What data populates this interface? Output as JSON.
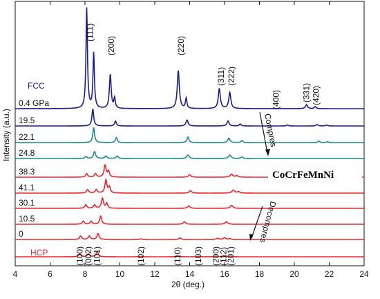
{
  "chart_data": {
    "type": "line",
    "xlabel": "2θ (deg.)",
    "ylabel": "Intensity (a.u.)",
    "xlim": [
      4,
      24
    ],
    "x_ticks": [
      "4",
      "6",
      "8",
      "10",
      "12",
      "14",
      "16",
      "18",
      "20",
      "22",
      "24"
    ],
    "grid": false,
    "phase_labels": {
      "fcc": "FCC",
      "hcp": "HCP"
    },
    "alloy_label": "CoCrFeMnNi",
    "arrow_labels": {
      "compress": "Compres",
      "decompress": "Decompres"
    },
    "colors": {
      "fcc": "#1b1b8f",
      "transition": "#1b8a8a",
      "hcp": "#e8262b"
    },
    "fcc_peaks": [
      {
        "label": "(111)",
        "x": 8.3
      },
      {
        "label": "(200)",
        "x": 9.5
      },
      {
        "label": "(220)",
        "x": 13.5
      },
      {
        "label": "(311)",
        "x": 15.8
      },
      {
        "label": "(222)",
        "x": 16.4
      },
      {
        "label": "(400)",
        "x": 18.95
      },
      {
        "label": "(331)",
        "x": 20.7
      },
      {
        "label": "(420)",
        "x": 21.25
      }
    ],
    "hcp_peaks": [
      {
        "label": "(100)",
        "x": 7.7
      },
      {
        "label": "(002)",
        "x": 8.2
      },
      {
        "label": "(101)",
        "x": 8.7
      },
      {
        "label": "(102)",
        "x": 11.2
      },
      {
        "label": "(110)",
        "x": 13.3
      },
      {
        "label": "(103)",
        "x": 14.5
      },
      {
        "label": "(200)",
        "x": 15.5
      },
      {
        "label": "(112)",
        "x": 15.95
      },
      {
        "label": "(201)",
        "x": 16.35
      }
    ],
    "series": [
      {
        "name": "0.4 GPa",
        "color": "#1b1b8f",
        "peaks": [
          [
            8.1,
            100,
            0.05
          ],
          [
            8.5,
            55,
            0.05
          ],
          [
            9.45,
            34,
            0.06
          ],
          [
            9.7,
            10,
            0.05
          ],
          [
            13.35,
            38,
            0.07
          ],
          [
            13.8,
            10,
            0.05
          ],
          [
            15.7,
            20,
            0.07
          ],
          [
            16.3,
            16,
            0.07
          ],
          [
            20.7,
            4,
            0.07
          ],
          [
            21.2,
            2,
            0.06
          ]
        ]
      },
      {
        "name": "19.5",
        "color": "#1b1b8f",
        "peaks": [
          [
            8.45,
            17,
            0.06
          ],
          [
            9.75,
            5,
            0.06
          ],
          [
            13.85,
            6,
            0.07
          ],
          [
            16.2,
            5,
            0.07
          ],
          [
            16.9,
            2,
            0.06
          ],
          [
            19.6,
            1,
            0.06
          ],
          [
            21.3,
            1.5,
            0.06
          ],
          [
            21.85,
            1,
            0.06
          ]
        ]
      },
      {
        "name": "22.1",
        "color": "#1b8a8a",
        "peaks": [
          [
            8.5,
            15,
            0.06
          ],
          [
            9.8,
            5,
            0.06
          ],
          [
            13.9,
            5.5,
            0.07
          ],
          [
            16.25,
            4.5,
            0.07
          ],
          [
            17.0,
            2,
            0.06
          ],
          [
            21.4,
            1.5,
            0.06
          ],
          [
            21.9,
            1,
            0.06
          ]
        ]
      },
      {
        "name": "24.8",
        "color": "#1b8a8a",
        "peaks": [
          [
            8.05,
            2,
            0.06
          ],
          [
            8.55,
            7,
            0.07
          ],
          [
            9.2,
            2.5,
            0.07
          ],
          [
            9.85,
            2.5,
            0.07
          ],
          [
            13.9,
            3.5,
            0.08
          ],
          [
            16.3,
            3.5,
            0.08
          ],
          [
            17.0,
            1.5,
            0.07
          ]
        ]
      },
      {
        "name": "38.3",
        "color": "#e8262b",
        "peaks": [
          [
            8.1,
            3.5,
            0.07
          ],
          [
            8.6,
            3.5,
            0.07
          ],
          [
            9.15,
            12,
            0.07
          ],
          [
            9.35,
            6,
            0.06
          ],
          [
            14.0,
            2.5,
            0.08
          ],
          [
            16.4,
            3,
            0.09
          ],
          [
            16.7,
            1.5,
            0.08
          ]
        ]
      },
      {
        "name": "41.1",
        "color": "#e8262b",
        "peaks": [
          [
            8.15,
            3.5,
            0.07
          ],
          [
            8.65,
            3.5,
            0.07
          ],
          [
            9.2,
            13,
            0.07
          ],
          [
            9.4,
            6,
            0.06
          ],
          [
            14.05,
            2.5,
            0.08
          ],
          [
            16.5,
            3,
            0.09
          ],
          [
            16.8,
            1.5,
            0.08
          ]
        ]
      },
      {
        "name": "30.1",
        "color": "#e8262b",
        "peaks": [
          [
            8.05,
            3.5,
            0.07
          ],
          [
            8.55,
            3.5,
            0.07
          ],
          [
            9.0,
            10,
            0.07
          ],
          [
            9.25,
            5,
            0.06
          ],
          [
            13.95,
            2.5,
            0.08
          ],
          [
            16.4,
            3,
            0.09
          ]
        ]
      },
      {
        "name": "10.5",
        "color": "#e8262b",
        "peaks": [
          [
            7.9,
            3,
            0.07
          ],
          [
            8.35,
            3,
            0.07
          ],
          [
            8.9,
            8,
            0.07
          ],
          [
            13.7,
            2.5,
            0.08
          ],
          [
            16.1,
            2.5,
            0.09
          ]
        ]
      },
      {
        "name": "0",
        "color": "#e8262b",
        "peaks": [
          [
            7.75,
            3.5,
            0.07
          ],
          [
            8.25,
            3.5,
            0.07
          ],
          [
            8.75,
            6,
            0.07
          ],
          [
            11.2,
            0.6,
            0.08
          ],
          [
            13.45,
            1.5,
            0.08
          ],
          [
            15.6,
            1.2,
            0.08
          ],
          [
            16.0,
            1.8,
            0.08
          ],
          [
            16.3,
            0.8,
            0.08
          ]
        ]
      },
      {
        "name": "",
        "color": "#e8262b",
        "peaks": [
          [
            7.7,
            3,
            0.07
          ],
          [
            8.2,
            3,
            0.07
          ],
          [
            8.7,
            5,
            0.07
          ],
          [
            11.2,
            0.4,
            0.08
          ],
          [
            13.3,
            1.2,
            0.08
          ],
          [
            14.5,
            0.4,
            0.08
          ],
          [
            15.5,
            0.6,
            0.08
          ],
          [
            15.95,
            1.2,
            0.08
          ],
          [
            16.35,
            0.6,
            0.08
          ]
        ]
      }
    ]
  }
}
